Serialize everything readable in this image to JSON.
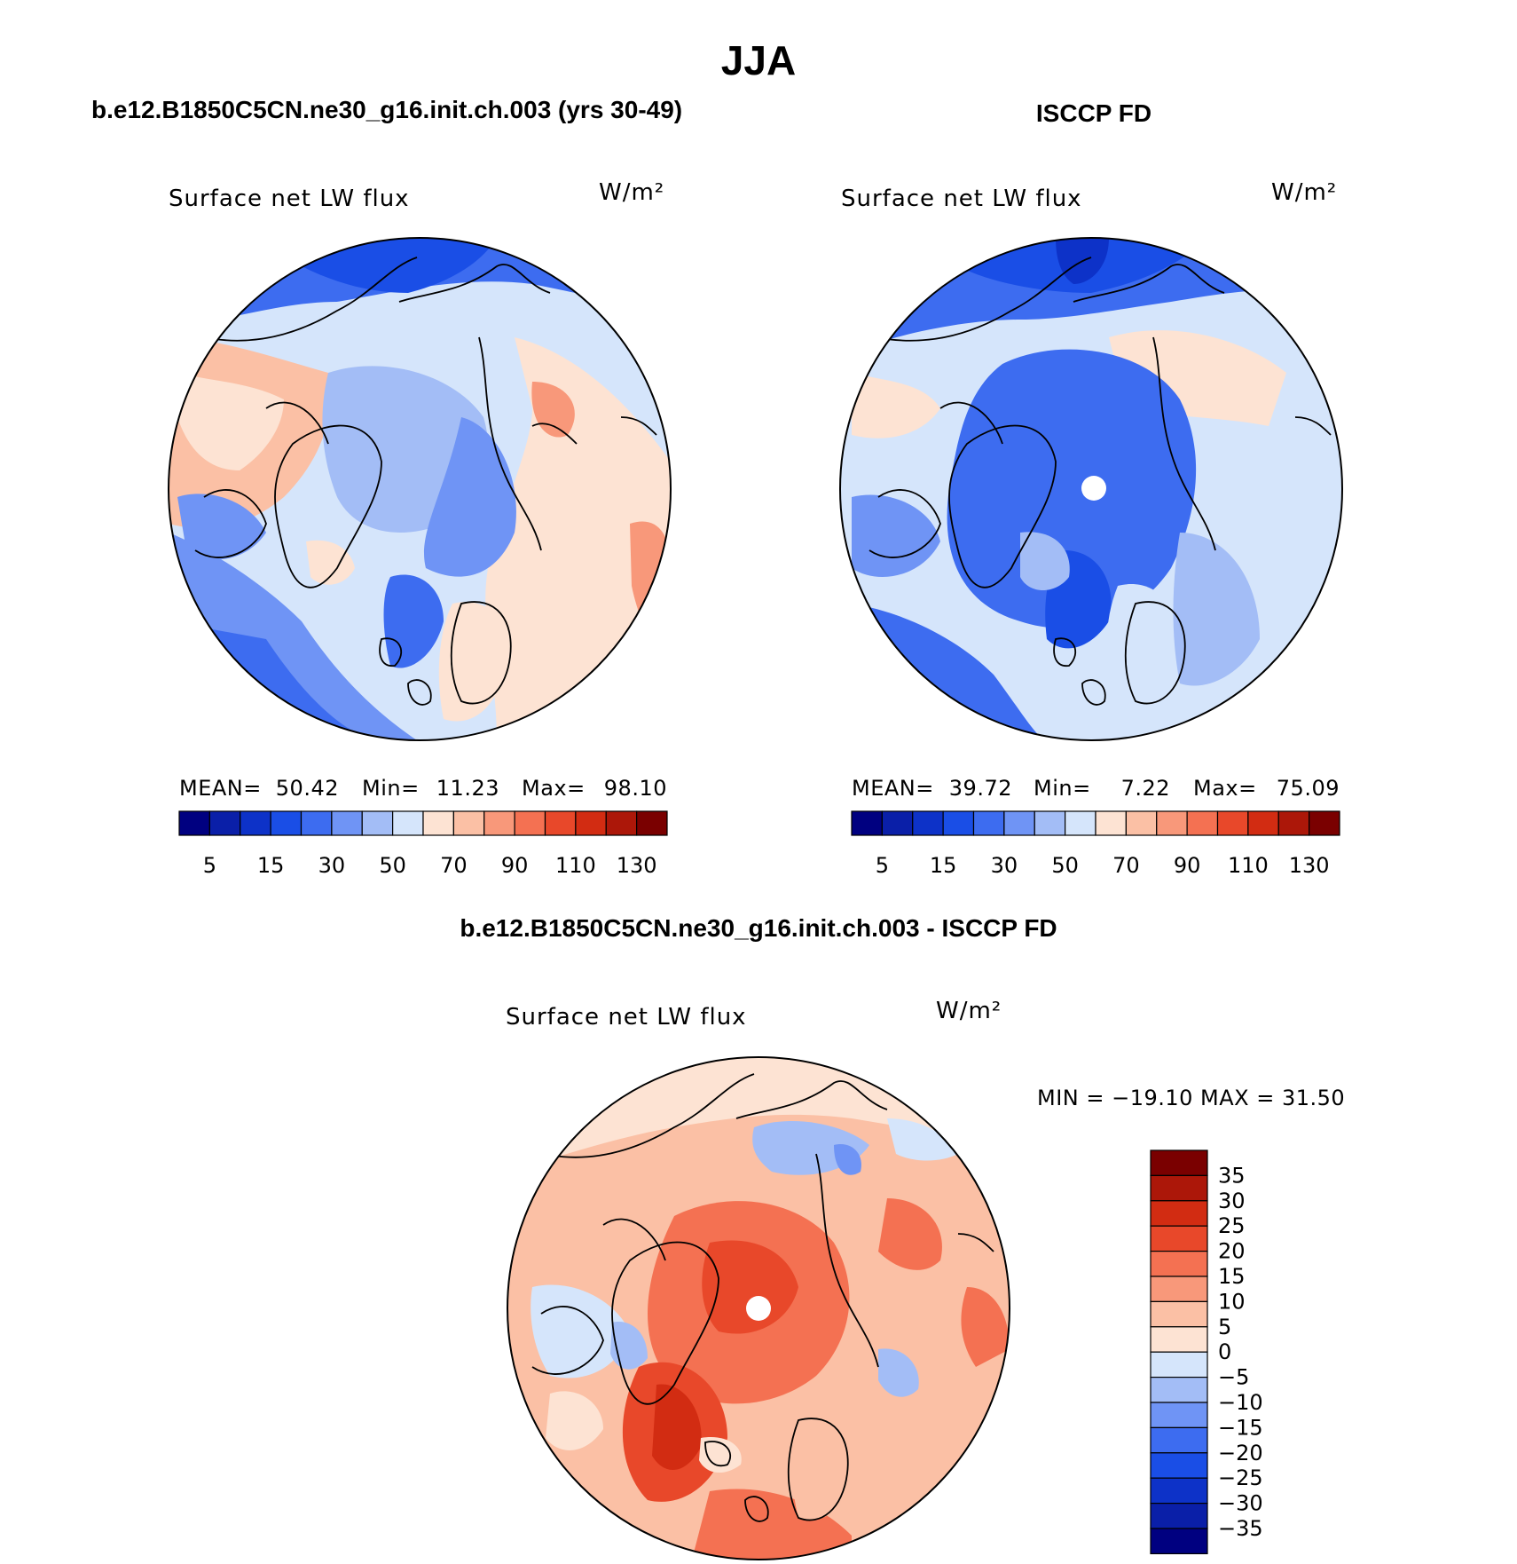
{
  "main_title": "JJA",
  "panels": [
    {
      "id": "model",
      "header": "b.e12.B1850C5CN.ne30_g16.init.ch.003 (yrs 30-49)",
      "variable": "Surface net LW flux",
      "units": "W/m²",
      "stats": {
        "mean_label": "MEAN=",
        "mean": "50.42",
        "min_label": "Min=",
        "min": "11.23",
        "max_label": "Max=",
        "max": "98.10"
      }
    },
    {
      "id": "obs",
      "header": "ISCCP FD",
      "variable": "Surface net LW flux",
      "units": "W/m²",
      "stats": {
        "mean_label": "MEAN=",
        "mean": "39.72",
        "min_label": "Min=",
        "min": "7.22",
        "max_label": "Max=",
        "max": "75.09"
      }
    },
    {
      "id": "diff",
      "header": "b.e12.B1850C5CN.ne30_g16.init.ch.003 - ISCCP FD",
      "variable": "Surface net LW flux",
      "units": "W/m²",
      "stats_line": "MIN = −19.10 MAX =   31.50"
    }
  ],
  "colorbar_abs": {
    "colors": [
      "#000080",
      "#0a1fa8",
      "#0d32c8",
      "#1a4ee6",
      "#3d6cf0",
      "#6f94f5",
      "#a3bdf6",
      "#d5e5fb",
      "#fde3d3",
      "#fbc0a5",
      "#f8987a",
      "#f47152",
      "#e8482a",
      "#d22c12",
      "#ac1709",
      "#7a0000"
    ],
    "tick_labels": [
      "5",
      "15",
      "30",
      "50",
      "70",
      "90",
      "110",
      "130"
    ]
  },
  "colorbar_diff": {
    "colors": [
      "#7a0000",
      "#ac1709",
      "#d22c12",
      "#e8482a",
      "#f47152",
      "#f8987a",
      "#fbc0a5",
      "#fde3d3",
      "#d5e5fb",
      "#a3bdf6",
      "#6f94f5",
      "#3d6cf0",
      "#1a4ee6",
      "#0d32c8",
      "#0a1fa8",
      "#000080"
    ],
    "tick_labels": [
      "35",
      "30",
      "25",
      "20",
      "15",
      "10",
      "5",
      "0",
      "−5",
      "−10",
      "−15",
      "−20",
      "−25",
      "−30",
      "−35"
    ]
  }
}
